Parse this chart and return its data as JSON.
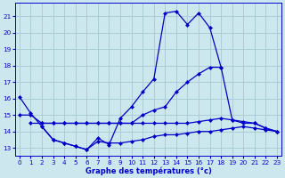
{
  "xlabel": "Graphe des températures (°c)",
  "bg_color": "#cce8ee",
  "grid_color": "#aacdd6",
  "line_color": "#0000cc",
  "xlim_min": -0.4,
  "xlim_max": 23.4,
  "ylim_min": 12.5,
  "ylim_max": 21.8,
  "xticks": [
    0,
    1,
    2,
    3,
    4,
    5,
    6,
    7,
    8,
    9,
    10,
    11,
    12,
    13,
    14,
    15,
    16,
    17,
    18,
    19,
    20,
    21,
    22,
    23
  ],
  "yticks": [
    13,
    14,
    15,
    16,
    17,
    18,
    19,
    20,
    21
  ],
  "series1_x": [
    0,
    1,
    2,
    3,
    4,
    5,
    6,
    7,
    8,
    9,
    10,
    11,
    12,
    13,
    14,
    15,
    16,
    17,
    18
  ],
  "series1_y": [
    16.1,
    15.1,
    14.3,
    13.5,
    13.3,
    13.1,
    12.9,
    13.6,
    13.2,
    14.8,
    15.5,
    16.4,
    17.2,
    21.2,
    21.3,
    20.5,
    21.2,
    20.3,
    17.9
  ],
  "series2_x": [
    0,
    1,
    2,
    3,
    4,
    5,
    6,
    7,
    8,
    9,
    10,
    11,
    12,
    13,
    14,
    15,
    16,
    17,
    18,
    19,
    20,
    21,
    22,
    23
  ],
  "series2_y": [
    15.0,
    15.0,
    14.5,
    14.5,
    14.5,
    14.5,
    14.5,
    14.5,
    14.5,
    14.5,
    14.5,
    15.0,
    15.3,
    15.5,
    16.4,
    17.0,
    17.5,
    17.9,
    17.9,
    14.7,
    14.5,
    14.5,
    14.2,
    14.0
  ],
  "series3_x": [
    1,
    2,
    3,
    4,
    5,
    6,
    7,
    8,
    9,
    10,
    11,
    12,
    13,
    14,
    15,
    16,
    17,
    18,
    19,
    20,
    21,
    22,
    23
  ],
  "series3_y": [
    14.5,
    14.5,
    14.5,
    14.5,
    14.5,
    14.5,
    14.5,
    14.5,
    14.5,
    14.5,
    14.5,
    14.5,
    14.5,
    14.5,
    14.5,
    14.6,
    14.7,
    14.8,
    14.7,
    14.6,
    14.5,
    14.2,
    14.0
  ],
  "series4_x": [
    2,
    3,
    4,
    5,
    6,
    7,
    8,
    9,
    10,
    11,
    12,
    13,
    14,
    15,
    16,
    17,
    18,
    19,
    20,
    21,
    22,
    23
  ],
  "series4_y": [
    14.3,
    13.5,
    13.3,
    13.1,
    12.9,
    13.4,
    13.3,
    13.3,
    13.4,
    13.5,
    13.7,
    13.8,
    13.8,
    13.9,
    14.0,
    14.0,
    14.1,
    14.2,
    14.3,
    14.2,
    14.1,
    14.0
  ]
}
